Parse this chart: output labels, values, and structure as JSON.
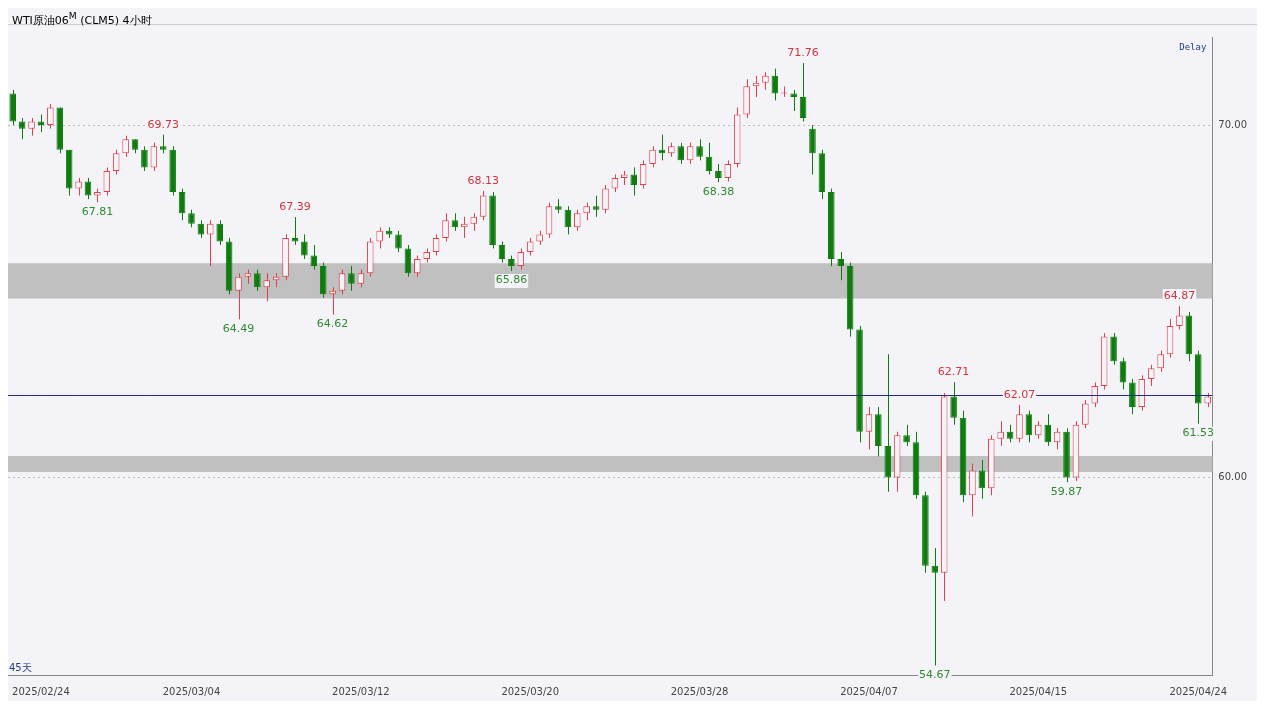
{
  "chart_data": {
    "type": "candlestick",
    "title": "WTI原油06$^{M}$ (CLM5) 4小时",
    "categories": [
      null,
      null,
      null,
      "2025/02/24",
      null,
      null,
      null,
      null,
      null,
      null,
      null,
      null,
      null,
      null,
      null,
      null,
      null,
      null,
      null,
      "2025/03/04",
      null,
      null,
      null,
      null,
      null,
      null,
      null,
      null,
      null,
      null,
      null,
      null,
      null,
      null,
      null,
      null,
      null,
      "2025/03/12",
      null,
      null,
      null,
      null,
      null,
      null,
      null,
      null,
      null,
      null,
      null,
      null,
      null,
      null,
      null,
      null,
      null,
      "2025/03/20",
      null,
      null,
      null,
      null,
      null,
      null,
      null,
      null,
      null,
      null,
      null,
      null,
      null,
      null,
      null,
      null,
      null,
      "2025/03/28",
      null,
      null,
      null,
      null,
      null,
      null,
      null,
      null,
      null,
      null,
      null,
      null,
      null,
      null,
      null,
      null,
      null,
      "2025/04/07",
      null,
      null,
      null,
      null,
      null,
      null,
      null,
      null,
      null,
      null,
      null,
      null,
      null,
      null,
      null,
      null,
      null,
      "2025/04/15",
      null,
      null,
      null,
      null,
      null,
      null,
      null,
      null,
      null,
      null,
      null,
      null,
      null,
      null,
      null,
      null,
      "2025/04/24",
      null
    ],
    "ohlc": [
      [
        70.9,
        71.0,
        70.0,
        70.1
      ],
      [
        70.1,
        70.2,
        69.6,
        69.9
      ],
      [
        69.9,
        70.2,
        69.7,
        70.1
      ],
      [
        70.1,
        70.3,
        69.8,
        70.0
      ],
      [
        70.0,
        70.6,
        69.9,
        70.5
      ],
      [
        70.5,
        70.5,
        69.2,
        69.3
      ],
      [
        69.3,
        69.3,
        68.0,
        68.2
      ],
      [
        68.2,
        68.5,
        68.0,
        68.4
      ],
      [
        68.4,
        68.5,
        67.9,
        68.0
      ],
      [
        68.0,
        68.2,
        67.81,
        68.1
      ],
      [
        68.1,
        68.8,
        68.0,
        68.7
      ],
      [
        68.7,
        69.3,
        68.6,
        69.2
      ],
      [
        69.2,
        69.7,
        69.1,
        69.6
      ],
      [
        69.6,
        69.6,
        69.2,
        69.3
      ],
      [
        69.3,
        69.4,
        68.7,
        68.8
      ],
      [
        68.8,
        69.5,
        68.7,
        69.4
      ],
      [
        69.4,
        69.73,
        69.2,
        69.3
      ],
      [
        69.3,
        69.4,
        68.0,
        68.1
      ],
      [
        68.1,
        68.2,
        67.3,
        67.5
      ],
      [
        67.5,
        67.6,
        67.1,
        67.2
      ],
      [
        67.2,
        67.3,
        66.8,
        66.9
      ],
      [
        66.9,
        67.3,
        66.0,
        67.2
      ],
      [
        67.2,
        67.3,
        66.6,
        66.7
      ],
      [
        66.7,
        66.8,
        65.2,
        65.3
      ],
      [
        65.3,
        65.8,
        64.49,
        65.7
      ],
      [
        65.7,
        65.9,
        65.5,
        65.8
      ],
      [
        65.8,
        65.9,
        65.3,
        65.4
      ],
      [
        65.4,
        65.8,
        65.0,
        65.6
      ],
      [
        65.6,
        65.8,
        65.4,
        65.7
      ],
      [
        65.7,
        66.9,
        65.6,
        66.8
      ],
      [
        66.8,
        67.39,
        66.6,
        66.7
      ],
      [
        66.7,
        66.9,
        66.2,
        66.3
      ],
      [
        66.3,
        66.6,
        65.9,
        66.0
      ],
      [
        66.0,
        66.1,
        65.1,
        65.2
      ],
      [
        65.2,
        65.4,
        64.62,
        65.3
      ],
      [
        65.3,
        65.9,
        65.2,
        65.8
      ],
      [
        65.8,
        66.0,
        65.3,
        65.5
      ],
      [
        65.5,
        65.9,
        65.4,
        65.8
      ],
      [
        65.8,
        66.8,
        65.7,
        66.7
      ],
      [
        66.7,
        67.1,
        66.5,
        67.0
      ],
      [
        67.0,
        67.1,
        66.8,
        66.9
      ],
      [
        66.9,
        67.0,
        66.4,
        66.5
      ],
      [
        66.5,
        66.6,
        65.7,
        65.8
      ],
      [
        65.8,
        66.3,
        65.7,
        66.2
      ],
      [
        66.2,
        66.5,
        66.1,
        66.4
      ],
      [
        66.4,
        66.9,
        66.3,
        66.8
      ],
      [
        66.8,
        67.5,
        66.7,
        67.3
      ],
      [
        67.3,
        67.5,
        67.0,
        67.1
      ],
      [
        67.1,
        67.4,
        66.8,
        67.2
      ],
      [
        67.2,
        67.5,
        67.0,
        67.4
      ],
      [
        67.4,
        68.13,
        67.3,
        68.0
      ],
      [
        68.0,
        68.1,
        66.5,
        66.6
      ],
      [
        66.6,
        66.7,
        66.1,
        66.2
      ],
      [
        66.2,
        66.3,
        65.86,
        66.0
      ],
      [
        66.0,
        66.5,
        65.9,
        66.4
      ],
      [
        66.4,
        66.8,
        66.3,
        66.7
      ],
      [
        66.7,
        67.0,
        66.6,
        66.9
      ],
      [
        66.9,
        67.8,
        66.8,
        67.7
      ],
      [
        67.7,
        67.9,
        67.5,
        67.6
      ],
      [
        67.6,
        67.7,
        66.9,
        67.1
      ],
      [
        67.1,
        67.6,
        67.0,
        67.5
      ],
      [
        67.5,
        67.8,
        67.3,
        67.7
      ],
      [
        67.7,
        68.0,
        67.4,
        67.6
      ],
      [
        67.6,
        68.3,
        67.5,
        68.2
      ],
      [
        68.2,
        68.6,
        68.1,
        68.5
      ],
      [
        68.5,
        68.7,
        68.3,
        68.6
      ],
      [
        68.6,
        68.8,
        68.0,
        68.3
      ],
      [
        68.3,
        69.0,
        68.2,
        68.9
      ],
      [
        68.9,
        69.4,
        68.8,
        69.3
      ],
      [
        69.3,
        69.73,
        69.0,
        69.2
      ],
      [
        69.2,
        69.5,
        69.1,
        69.4
      ],
      [
        69.4,
        69.5,
        68.9,
        69.0
      ],
      [
        69.0,
        69.5,
        68.9,
        69.4
      ],
      [
        69.4,
        69.6,
        69.0,
        69.1
      ],
      [
        69.1,
        69.5,
        68.6,
        68.7
      ],
      [
        68.7,
        68.9,
        68.38,
        68.5
      ],
      [
        68.5,
        69.0,
        68.4,
        68.9
      ],
      [
        68.9,
        70.5,
        68.8,
        70.3
      ],
      [
        70.3,
        71.3,
        70.2,
        71.1
      ],
      [
        71.1,
        71.4,
        70.8,
        71.2
      ],
      [
        71.2,
        71.5,
        71.0,
        71.4
      ],
      [
        71.4,
        71.6,
        70.7,
        70.9
      ],
      [
        70.9,
        71.1,
        70.8,
        70.9
      ],
      [
        70.9,
        71.0,
        70.4,
        70.8
      ],
      [
        70.8,
        71.76,
        70.1,
        70.2
      ],
      [
        69.9,
        70.0,
        68.6,
        69.2
      ],
      [
        69.2,
        69.3,
        67.9,
        68.1
      ],
      [
        68.1,
        68.2,
        66.0,
        66.2
      ],
      [
        66.2,
        66.4,
        65.6,
        66.0
      ],
      [
        66.0,
        66.1,
        64.0,
        64.2
      ],
      [
        64.2,
        64.3,
        61.0,
        61.3
      ],
      [
        61.3,
        62.0,
        60.8,
        61.8
      ],
      [
        61.8,
        62.0,
        60.6,
        60.9
      ],
      [
        60.9,
        63.5,
        59.6,
        60.0
      ],
      [
        60.0,
        61.3,
        59.6,
        61.2
      ],
      [
        61.2,
        61.5,
        60.9,
        61.0
      ],
      [
        61.0,
        61.3,
        59.4,
        59.5
      ],
      [
        59.5,
        59.6,
        57.3,
        57.5
      ],
      [
        57.5,
        58.0,
        54.67,
        57.3
      ],
      [
        57.3,
        62.4,
        56.5,
        62.3
      ],
      [
        62.3,
        62.71,
        61.5,
        61.7
      ],
      [
        61.7,
        61.9,
        59.3,
        59.5
      ],
      [
        59.5,
        60.4,
        58.9,
        60.2
      ],
      [
        60.2,
        60.5,
        59.4,
        59.7
      ],
      [
        59.7,
        61.2,
        59.5,
        61.1
      ],
      [
        61.1,
        61.6,
        60.9,
        61.3
      ],
      [
        61.3,
        61.5,
        61.0,
        61.1
      ],
      [
        61.1,
        62.07,
        61.0,
        61.8
      ],
      [
        61.8,
        61.9,
        61.0,
        61.2
      ],
      [
        61.2,
        61.6,
        61.1,
        61.5
      ],
      [
        61.5,
        61.8,
        60.9,
        61.0
      ],
      [
        61.0,
        61.4,
        60.8,
        61.3
      ],
      [
        61.3,
        61.4,
        59.87,
        60.0
      ],
      [
        60.0,
        61.6,
        59.9,
        61.5
      ],
      [
        61.5,
        62.2,
        61.4,
        62.1
      ],
      [
        62.1,
        62.7,
        62.0,
        62.6
      ],
      [
        62.6,
        64.1,
        62.5,
        64.0
      ],
      [
        64.0,
        64.1,
        63.2,
        63.3
      ],
      [
        63.3,
        63.4,
        62.5,
        62.7
      ],
      [
        62.7,
        62.8,
        61.8,
        62.0
      ],
      [
        62.0,
        62.9,
        61.9,
        62.8
      ],
      [
        62.8,
        63.2,
        62.6,
        63.1
      ],
      [
        63.1,
        63.6,
        63.0,
        63.5
      ],
      [
        63.5,
        64.5,
        63.4,
        64.3
      ],
      [
        64.3,
        64.87,
        64.2,
        64.6
      ],
      [
        64.6,
        64.7,
        63.3,
        63.5
      ],
      [
        63.5,
        63.6,
        61.53,
        62.1
      ],
      [
        62.1,
        62.4,
        62.0,
        62.3
      ]
    ],
    "colors": [
      "#107c10",
      "#107c10",
      "#e0404a",
      "#107c10",
      "#e0404a",
      "#107c10",
      "#107c10",
      "#e0404a",
      "#107c10",
      "#e0404a",
      "#e0404a",
      "#e0404a",
      "#e0404a",
      "#107c10",
      "#107c10",
      "#e0404a",
      "#107c10",
      "#107c10",
      "#107c10",
      "#107c10",
      "#107c10",
      "#e0404a",
      "#107c10",
      "#107c10",
      "#e0404a",
      "#e0404a",
      "#107c10",
      "#e0404a",
      "#e0404a",
      "#e0404a",
      "#107c10",
      "#107c10",
      "#107c10",
      "#107c10",
      "#e0404a",
      "#e0404a",
      "#107c10",
      "#e0404a",
      "#e0404a",
      "#e0404a",
      "#107c10",
      "#107c10",
      "#107c10",
      "#e0404a",
      "#e0404a",
      "#e0404a",
      "#e0404a",
      "#107c10",
      "#e0404a",
      "#e0404a",
      "#e0404a",
      "#107c10",
      "#107c10",
      "#107c10",
      "#e0404a",
      "#e0404a",
      "#e0404a",
      "#e0404a",
      "#107c10",
      "#107c10",
      "#e0404a",
      "#e0404a",
      "#107c10",
      "#e0404a",
      "#e0404a",
      "#e0404a",
      "#107c10",
      "#e0404a",
      "#e0404a",
      "#107c10",
      "#e0404a",
      "#107c10",
      "#e0404a",
      "#107c10",
      "#107c10",
      "#107c10",
      "#e0404a",
      "#e0404a",
      "#e0404a",
      "#e0404a",
      "#e0404a",
      "#107c10",
      "#e0404a",
      "#107c10",
      "#107c10",
      "#107c10",
      "#107c10",
      "#107c10",
      "#107c10",
      "#107c10",
      "#107c10",
      "#e0404a",
      "#107c10",
      "#107c10",
      "#e0404a",
      "#107c10",
      "#107c10",
      "#107c10",
      "#107c10",
      "#e0404a",
      "#107c10",
      "#107c10",
      "#e0404a",
      "#107c10",
      "#e0404a",
      "#e0404a",
      "#107c10",
      "#e0404a",
      "#107c10",
      "#e0404a",
      "#107c10",
      "#e0404a",
      "#107c10",
      "#e0404a",
      "#e0404a",
      "#e0404a",
      "#e0404a",
      "#107c10",
      "#107c10",
      "#107c10",
      "#e0404a",
      "#e0404a",
      "#e0404a",
      "#e0404a",
      "#e0404a",
      "#107c10",
      "#107c10",
      "#e0404a"
    ],
    "ylim": [
      54.4,
      72.5
    ],
    "yticks": [
      {
        "value": 60,
        "label": "60.00"
      },
      {
        "value": 70,
        "label": "70.00"
      }
    ],
    "grid": "y",
    "bands": [
      {
        "axis": "y",
        "from": 65.08,
        "to": 66.08,
        "color": "#c0c0c0"
      },
      {
        "axis": "y",
        "from": 60.16,
        "to": 60.61,
        "color": "#c0c0c0"
      }
    ],
    "ref_lines": [
      {
        "axis": "y",
        "value": 62.33,
        "color": "#1f2a7a"
      }
    ],
    "annotations": [
      "Delay",
      "45天",
      {
        "text": "67.81",
        "y": 67.81
      },
      {
        "text": "69.73",
        "y": 69.73
      },
      {
        "text": "64.49",
        "y": 64.49
      },
      {
        "text": "67.39",
        "y": 67.39
      },
      {
        "text": "64.62",
        "y": 64.62
      },
      {
        "text": "68.13",
        "y": 68.13
      },
      {
        "text": "65.86",
        "y": 65.86
      },
      {
        "text": "68.38",
        "y": 68.38
      },
      {
        "text": "71.76",
        "y": 71.76
      },
      {
        "text": "54.67",
        "y": 54.67
      },
      {
        "text": "62.71",
        "y": 62.71
      },
      {
        "text": "62.07",
        "y": 62.07
      },
      {
        "text": "59.87",
        "y": 59.87
      },
      {
        "text": "64.87",
        "y": 64.87
      },
      {
        "text": "61.53",
        "y": 61.53
      }
    ]
  }
}
